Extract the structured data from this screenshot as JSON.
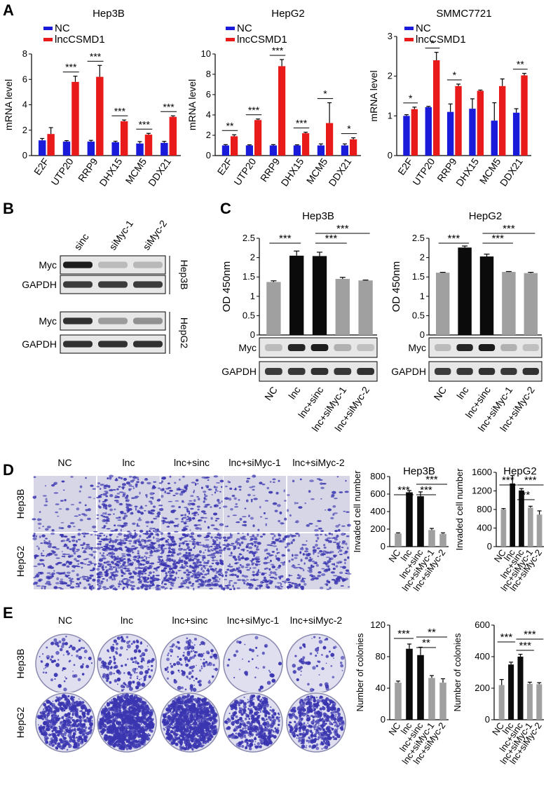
{
  "colors": {
    "nc": "#1a1adb",
    "lnc": "#e81a1a",
    "gray": "#a0a0a0",
    "black": "#0b0b0b",
    "stain": "#3a35b0"
  },
  "panel_letters": {
    "a": "A",
    "b": "B",
    "c": "C",
    "d": "D",
    "e": "E"
  },
  "panelA": {
    "legend": [
      "NC",
      "lncCSMD1"
    ],
    "ylabel": "mRNA level",
    "categories": [
      "E2F",
      "UTP20",
      "RRP9",
      "DHX15",
      "MCM5",
      "DDX21"
    ]
  },
  "panelB": {
    "lanes": [
      "sinc",
      "siMyc-1",
      "siMyc-2"
    ],
    "rows": [
      "Myc",
      "GAPDH",
      "Myc",
      "GAPDH"
    ],
    "groups": [
      "Hep3B",
      "HepG2"
    ]
  },
  "panelC": {
    "ylabel": "OD 450nm",
    "blot_rows": [
      "Myc",
      "GAPDH"
    ]
  },
  "panelD": {
    "conditions": [
      "NC",
      "lnc",
      "lnc+sinc",
      "lnc+siMyc-1",
      "lnc+siMyc-2"
    ],
    "rows": [
      "Hep3B",
      "HepG2"
    ],
    "ylabel": "Invaded cell number"
  },
  "panelE": {
    "conditions": [
      "NC",
      "lnc",
      "lnc+sinc",
      "lnc+siMyc-1",
      "lnc+siMyc-2"
    ],
    "rows": [
      "Hep3B",
      "HepG2"
    ],
    "ylabel": "Number of colonies"
  },
  "group_categories": [
    "NC",
    "lnc",
    "lnc+sinc",
    "lnc+siMyc-1",
    "lnc+siMyc-2"
  ],
  "chart_data": [
    {
      "id": "A1",
      "type": "bar",
      "title": "Hep3B",
      "ylabel": "mRNA level",
      "ylim": [
        0,
        8
      ],
      "yticks": [
        0,
        2,
        4,
        6,
        8
      ],
      "categories": [
        "E2F",
        "UTP20",
        "RRP9",
        "DHX15",
        "MCM5",
        "DDX21"
      ],
      "series": [
        {
          "name": "NC",
          "values": [
            1.2,
            1.1,
            1.1,
            1.05,
            0.95,
            1.0
          ],
          "errors": [
            0.15,
            0.08,
            0.1,
            0.08,
            0.15,
            0.12
          ]
        },
        {
          "name": "lncCSMD1",
          "values": [
            1.7,
            5.8,
            6.2,
            2.7,
            1.65,
            3.05
          ],
          "errors": [
            0.5,
            0.45,
            0.9,
            0.1,
            0.1,
            0.08
          ]
        }
      ],
      "sig": [
        "",
        "***",
        "***",
        "***",
        "***",
        "***"
      ]
    },
    {
      "id": "A2",
      "type": "bar",
      "title": "HepG2",
      "ylabel": "mRNA level",
      "ylim": [
        0,
        10
      ],
      "yticks": [
        0,
        2,
        4,
        6,
        8,
        10
      ],
      "categories": [
        "E2F",
        "UTP20",
        "RRP9",
        "DHX15",
        "MCM5",
        "DDX21"
      ],
      "series": [
        {
          "name": "NC",
          "values": [
            1.0,
            1.0,
            1.0,
            1.0,
            1.0,
            1.0
          ],
          "errors": [
            0.08,
            0.06,
            0.08,
            0.06,
            0.15,
            0.15
          ]
        },
        {
          "name": "lncCSMD1",
          "values": [
            1.9,
            3.5,
            8.8,
            2.2,
            3.2,
            1.6
          ],
          "errors": [
            0.15,
            0.1,
            0.65,
            0.1,
            2.0,
            0.15
          ]
        }
      ],
      "sig": [
        "**",
        "***",
        "***",
        "***",
        "*",
        "*"
      ]
    },
    {
      "id": "A3",
      "type": "bar",
      "title": "SMMC7721",
      "ylabel": "mRNA level",
      "ylim": [
        0,
        3
      ],
      "yticks": [
        0,
        1,
        2,
        3
      ],
      "categories": [
        "E2F",
        "UTP20",
        "RRP9",
        "DHX15",
        "MCM5",
        "DDX21"
      ],
      "series": [
        {
          "name": "NC",
          "values": [
            1.0,
            1.22,
            1.1,
            1.18,
            0.88,
            1.08
          ],
          "errors": [
            0.03,
            0.02,
            0.2,
            0.25,
            0.45,
            0.1
          ]
        },
        {
          "name": "lncCSMD1",
          "values": [
            1.17,
            2.4,
            1.75,
            1.63,
            1.75,
            2.02
          ],
          "errors": [
            0.05,
            0.2,
            0.05,
            0.02,
            0.18,
            0.05
          ]
        }
      ],
      "sig": [
        "*",
        "*",
        "*",
        "",
        "",
        "**"
      ]
    },
    {
      "id": "C1",
      "type": "bar",
      "title": "Hep3B",
      "ylabel": "OD 450nm",
      "ylim": [
        0,
        2.5
      ],
      "yticks": [
        0,
        0.5,
        1.0,
        1.5,
        2.0,
        2.5
      ],
      "categories": [
        "NC",
        "lnc",
        "lnc+sinc",
        "lnc+siMyc-1",
        "lnc+siMyc-2"
      ],
      "values": [
        1.37,
        2.05,
        2.04,
        1.45,
        1.41
      ],
      "errors": [
        0.03,
        0.12,
        0.1,
        0.04,
        0.01
      ],
      "brackets": [
        {
          "from": 0,
          "to": 1,
          "label": "***"
        },
        {
          "from": 2,
          "to": 3,
          "label": "***"
        },
        {
          "from": 2,
          "to": 4,
          "label": "***"
        }
      ]
    },
    {
      "id": "C2",
      "type": "bar",
      "title": "HepG2",
      "ylabel": "OD 450nm",
      "ylim": [
        0,
        2.5
      ],
      "yticks": [
        0,
        0.5,
        1.0,
        1.5,
        2.0,
        2.5
      ],
      "categories": [
        "NC",
        "lnc",
        "lnc+sinc",
        "lnc+siMyc-1",
        "lnc+siMyc-2"
      ],
      "values": [
        1.61,
        2.26,
        2.03,
        1.63,
        1.6
      ],
      "errors": [
        0.01,
        0.04,
        0.06,
        0.01,
        0.02
      ],
      "brackets": [
        {
          "from": 0,
          "to": 1,
          "label": "***"
        },
        {
          "from": 2,
          "to": 3,
          "label": "***"
        },
        {
          "from": 2,
          "to": 4,
          "label": "***"
        }
      ]
    },
    {
      "id": "D1",
      "type": "bar",
      "title": "Hep3B",
      "ylabel": "Invaded cell number",
      "ylim": [
        0,
        800
      ],
      "yticks": [
        0,
        200,
        400,
        600,
        800
      ],
      "categories": [
        "NC",
        "lnc",
        "lnc+sinc",
        "lnc+siMyc-1",
        "lnc+siMyc-2"
      ],
      "values": [
        150,
        620,
        575,
        190,
        145
      ],
      "errors": [
        8,
        20,
        50,
        18,
        12
      ],
      "brackets": [
        {
          "from": 0,
          "to": 1,
          "label": "***"
        },
        {
          "from": 2,
          "to": 3,
          "label": "***"
        },
        {
          "from": 2,
          "to": 4,
          "label": "***"
        }
      ]
    },
    {
      "id": "D2",
      "type": "bar",
      "title": "HepG2",
      "ylabel": "Invaded cell number",
      "ylim": [
        0,
        1600
      ],
      "yticks": [
        0,
        400,
        800,
        1200,
        1600
      ],
      "categories": [
        "NC",
        "lnc",
        "lnc+sinc",
        "lnc+siMyc-1",
        "lnc+siMyc-2"
      ],
      "values": [
        800,
        1360,
        1210,
        840,
        690
      ],
      "errors": [
        20,
        170,
        40,
        30,
        80
      ],
      "brackets": [
        {
          "from": 0,
          "to": 1,
          "label": "***"
        },
        {
          "from": 2,
          "to": 3,
          "label": "**"
        },
        {
          "from": 2,
          "to": 4,
          "label": "***"
        }
      ]
    },
    {
      "id": "E1",
      "type": "bar",
      "ylabel": "Number of colonies",
      "ylim": [
        0,
        120
      ],
      "yticks": [
        0,
        40,
        80,
        120
      ],
      "categories": [
        "NC",
        "lnc",
        "lnc+sinc",
        "lnc+siMyc-1",
        "lnc+siMyc-2"
      ],
      "values": [
        47,
        90,
        82,
        53,
        47
      ],
      "errors": [
        2,
        6,
        10,
        3,
        5
      ],
      "brackets": [
        {
          "from": 0,
          "to": 1,
          "label": "***"
        },
        {
          "from": 2,
          "to": 3,
          "label": "**"
        },
        {
          "from": 2,
          "to": 4,
          "label": "**"
        }
      ]
    },
    {
      "id": "E2",
      "type": "bar",
      "ylabel": "Number of colonies",
      "ylim": [
        0,
        600
      ],
      "yticks": [
        0,
        200,
        400,
        600
      ],
      "categories": [
        "NC",
        "lnc",
        "lnc+sinc",
        "lnc+siMyc-1",
        "lnc+siMyc-2"
      ],
      "values": [
        220,
        350,
        400,
        228,
        225
      ],
      "errors": [
        35,
        15,
        15,
        10,
        10
      ],
      "brackets": [
        {
          "from": 0,
          "to": 1,
          "label": "***"
        },
        {
          "from": 2,
          "to": 3,
          "label": "***"
        },
        {
          "from": 2,
          "to": 4,
          "label": "***"
        }
      ]
    }
  ]
}
